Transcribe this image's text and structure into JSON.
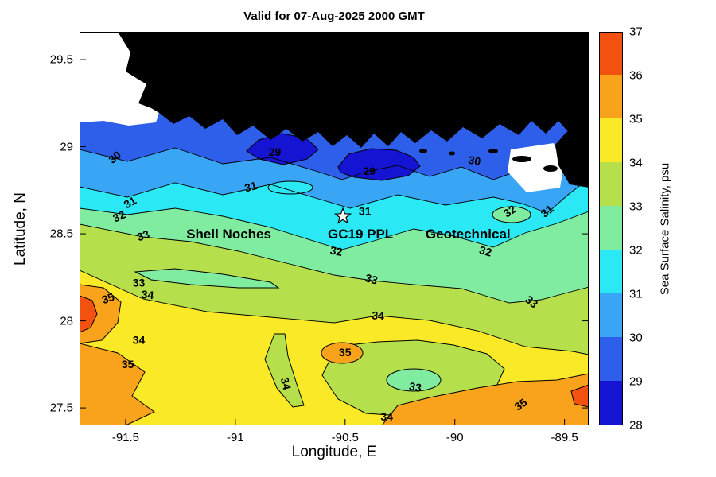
{
  "chart_data": {
    "type": "heatmap",
    "subtype": "filled_contour_map",
    "title": "Valid for 07-Aug-2025 2000 GMT",
    "xlabel": "Longitude, E",
    "ylabel": "Latitude, N",
    "xlim": [
      -91.71,
      -89.39
    ],
    "ylim": [
      27.4,
      29.66
    ],
    "xticks": [
      -91.5,
      -91,
      -90.5,
      -90,
      -89.5
    ],
    "yticks": [
      29.5,
      29,
      28.5,
      28,
      27.5
    ],
    "grid": false,
    "land_color": "#000000",
    "no_data_color": "#ffffff",
    "colorbar": {
      "label": "Sea Surface Salinity, psu",
      "min": 28,
      "max": 37,
      "ticks": [
        28,
        29,
        30,
        31,
        32,
        33,
        34,
        35,
        36,
        37
      ],
      "band_colors": [
        "#1414d2",
        "#2e5fea",
        "#38a5f5",
        "#2ae9f4",
        "#80eca0",
        "#b5e04b",
        "#f9e926",
        "#f9a21c",
        "#f25110"
      ]
    },
    "contour_levels": [
      29,
      30,
      31,
      32,
      33,
      34,
      35
    ],
    "labeled_contours": [
      {
        "value": 30,
        "lon": -91.55,
        "lat": 28.94,
        "rot": -40
      },
      {
        "value": 29,
        "lon": -90.82,
        "lat": 28.97,
        "rot": 0
      },
      {
        "value": 29,
        "lon": -90.39,
        "lat": 28.86,
        "rot": 0
      },
      {
        "value": 30,
        "lon": -89.91,
        "lat": 28.92,
        "rot": 10
      },
      {
        "value": 31,
        "lon": -90.93,
        "lat": 28.77,
        "rot": -15
      },
      {
        "value": 31,
        "lon": -91.48,
        "lat": 28.68,
        "rot": -30
      },
      {
        "value": 32,
        "lon": -91.53,
        "lat": 28.6,
        "rot": -25
      },
      {
        "value": 33,
        "lon": -91.42,
        "lat": 28.49,
        "rot": -20
      },
      {
        "value": 31,
        "lon": -90.41,
        "lat": 28.63,
        "rot": 0
      },
      {
        "value": 32,
        "lon": -89.75,
        "lat": 28.63,
        "rot": -35
      },
      {
        "value": 31,
        "lon": -89.58,
        "lat": 28.63,
        "rot": -40
      },
      {
        "value": 32,
        "lon": -90.54,
        "lat": 28.4,
        "rot": 10
      },
      {
        "value": 32,
        "lon": -89.86,
        "lat": 28.4,
        "rot": 15
      },
      {
        "value": 33,
        "lon": -91.44,
        "lat": 28.22,
        "rot": 0
      },
      {
        "value": 34,
        "lon": -91.4,
        "lat": 28.15,
        "rot": 5
      },
      {
        "value": 35,
        "lon": -91.58,
        "lat": 28.13,
        "rot": -20
      },
      {
        "value": 33,
        "lon": -90.38,
        "lat": 28.24,
        "rot": 15
      },
      {
        "value": 33,
        "lon": -89.65,
        "lat": 28.11,
        "rot": 40
      },
      {
        "value": 34,
        "lon": -90.35,
        "lat": 28.03,
        "rot": 5
      },
      {
        "value": 34,
        "lon": -91.44,
        "lat": 27.89,
        "rot": 0
      },
      {
        "value": 35,
        "lon": -91.49,
        "lat": 27.75,
        "rot": 0
      },
      {
        "value": 35,
        "lon": -90.5,
        "lat": 27.82,
        "rot": 0
      },
      {
        "value": 34,
        "lon": -90.77,
        "lat": 27.64,
        "rot": 75
      },
      {
        "value": 33,
        "lon": -90.18,
        "lat": 27.62,
        "rot": 10
      },
      {
        "value": 34,
        "lon": -90.31,
        "lat": 27.45,
        "rot": 0
      },
      {
        "value": 35,
        "lon": -89.7,
        "lat": 27.52,
        "rot": -35
      }
    ],
    "sites": [
      {
        "name": "Shell Noches",
        "lon": -91.03,
        "lat": 28.5
      },
      {
        "name": "GC19 PPL",
        "lon": -90.43,
        "lat": 28.5
      },
      {
        "name": "Geotechnical",
        "lon": -89.94,
        "lat": 28.5
      }
    ],
    "marker": {
      "shape": "star",
      "lon": -90.51,
      "lat": 28.6
    }
  }
}
